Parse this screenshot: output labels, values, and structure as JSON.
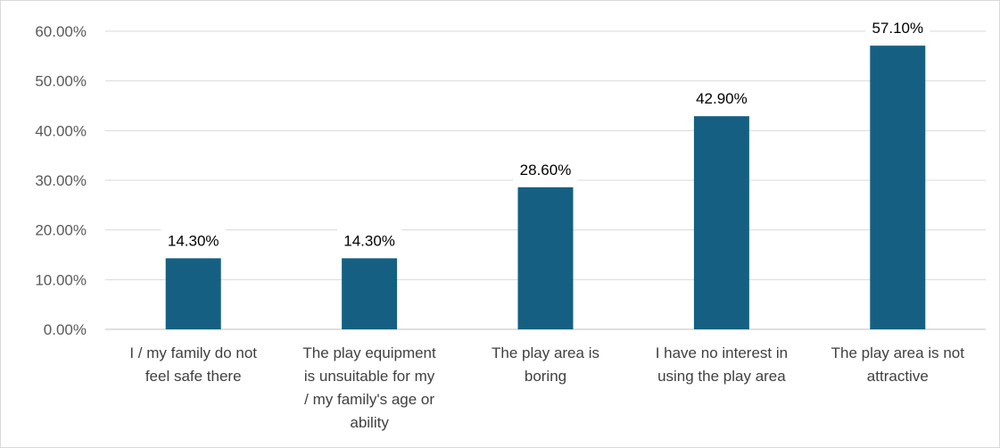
{
  "chart_data": {
    "type": "bar",
    "title": "",
    "xlabel": "",
    "ylabel": "",
    "ylim": [
      0,
      60
    ],
    "yticks": [
      "0.00%",
      "10.00%",
      "20.00%",
      "30.00%",
      "40.00%",
      "50.00%",
      "60.00%"
    ],
    "grid": true,
    "legend": "none",
    "bar_color": "#156082",
    "categories": [
      "I / my family do not feel safe there",
      "The play equipment is unsuitable for my / my family's age or ability",
      "The play area is boring",
      "I have no interest in using the play area",
      "The play area is not attractive"
    ],
    "category_lines": [
      [
        "I / my family do not",
        "feel safe there"
      ],
      [
        "The play equipment",
        "is unsuitable for my",
        "/ my family's age or",
        "ability"
      ],
      [
        "The play area is",
        "boring"
      ],
      [
        "I have no interest in",
        "using the play area"
      ],
      [
        "The play area is not",
        "attractive"
      ]
    ],
    "values": [
      14.3,
      14.3,
      28.6,
      42.9,
      57.1
    ],
    "data_labels": [
      "14.30%",
      "14.30%",
      "28.60%",
      "42.90%",
      "57.10%"
    ]
  }
}
